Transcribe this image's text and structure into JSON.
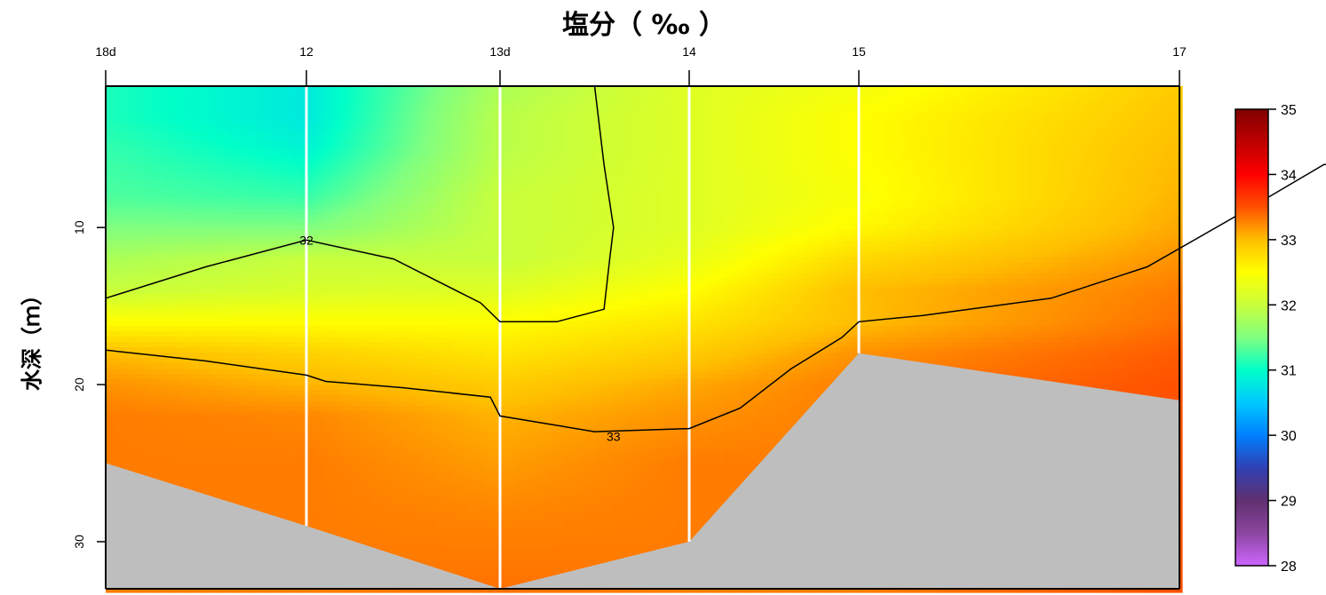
{
  "chart_data": {
    "type": "heatmap",
    "title": "塩分（ ‰ ）",
    "ylabel": "水深（ｍ）",
    "xlabel": "",
    "stations": [
      {
        "label": "18d",
        "bottom_depth": 25
      },
      {
        "label": "12",
        "bottom_depth": 29
      },
      {
        "label": "13d",
        "bottom_depth": 33
      },
      {
        "label": "14",
        "bottom_depth": 30
      },
      {
        "label": "15",
        "bottom_depth": 18
      },
      {
        "label": "17",
        "bottom_depth": 21
      }
    ],
    "y_ticks": [
      "10",
      "20",
      "30"
    ],
    "y_range": [
      1,
      33
    ],
    "color_scale": {
      "ticks": [
        "35",
        "34",
        "33",
        "32",
        "31",
        "30",
        "29",
        "28"
      ],
      "range": [
        28,
        35
      ]
    },
    "contours": [
      {
        "level": "32",
        "label": "32",
        "points": [
          [
            0,
            14.5
          ],
          [
            0.5,
            12.5
          ],
          [
            1,
            10.8
          ],
          [
            1.45,
            12
          ],
          [
            1.9,
            14.8
          ],
          [
            2,
            16
          ],
          [
            2.3,
            16
          ],
          [
            2.55,
            15.2
          ],
          [
            2.58,
            12
          ],
          [
            2.6,
            10
          ],
          [
            2.55,
            6
          ],
          [
            2.5,
            1
          ]
        ]
      },
      {
        "level": "33",
        "label": "33",
        "points": [
          [
            0,
            17.8
          ],
          [
            0.5,
            18.5
          ],
          [
            1,
            19.4
          ],
          [
            1.1,
            19.8
          ],
          [
            1.5,
            20.2
          ],
          [
            1.95,
            20.8
          ],
          [
            2,
            22
          ],
          [
            2.5,
            23
          ],
          [
            3,
            22.8
          ],
          [
            3.3,
            21.5
          ],
          [
            3.6,
            19
          ],
          [
            3.9,
            17
          ],
          [
            4,
            16
          ],
          [
            4.2,
            15.6
          ],
          [
            4.6,
            14.5
          ],
          [
            4.9,
            12.5
          ],
          [
            5.2,
            9
          ],
          [
            5.45,
            6
          ],
          [
            5.7,
            5.5
          ],
          [
            6,
            5.3
          ]
        ]
      }
    ],
    "field": [
      {
        "y": 1,
        "v": [
          31.1,
          30.8,
          31.8,
          32.2,
          32.4,
          32.9
        ]
      },
      {
        "y": 3,
        "v": [
          31.1,
          30.8,
          31.9,
          32.2,
          32.5,
          32.95
        ]
      },
      {
        "y": 5,
        "v": [
          31.2,
          30.9,
          31.9,
          32.2,
          32.5,
          33.0
        ]
      },
      {
        "y": 8,
        "v": [
          31.3,
          31.2,
          32.0,
          32.2,
          32.45,
          33.05
        ]
      },
      {
        "y": 10,
        "v": [
          31.5,
          31.5,
          32.0,
          32.2,
          32.55,
          33.1
        ]
      },
      {
        "y": 12,
        "v": [
          31.8,
          32.0,
          32.0,
          32.3,
          32.8,
          33.2
        ]
      },
      {
        "y": 14,
        "v": [
          32.0,
          32.15,
          32.2,
          32.5,
          33.0,
          33.3
        ]
      },
      {
        "y": 16,
        "v": [
          32.5,
          32.5,
          32.5,
          32.7,
          33.0,
          33.35
        ]
      },
      {
        "y": 18,
        "v": [
          33.0,
          32.85,
          32.7,
          32.9,
          33.2,
          33.45
        ]
      },
      {
        "y": 20,
        "v": [
          33.2,
          33.05,
          32.9,
          33.1,
          33.3,
          33.5
        ]
      },
      {
        "y": 22,
        "v": [
          33.3,
          33.25,
          33.05,
          33.2,
          33.3,
          33.5
        ]
      },
      {
        "y": 25,
        "v": [
          33.3,
          33.3,
          33.15,
          33.3,
          33.3,
          33.5
        ]
      },
      {
        "y": 28,
        "v": [
          33.3,
          33.3,
          33.25,
          33.3,
          33.3,
          33.5
        ]
      },
      {
        "y": 33,
        "v": [
          33.3,
          33.3,
          33.35,
          33.3,
          33.3,
          33.5
        ]
      }
    ],
    "colors": {
      "land": "#bebebe",
      "station_line": "#ffffff",
      "contour": "#000000"
    }
  }
}
